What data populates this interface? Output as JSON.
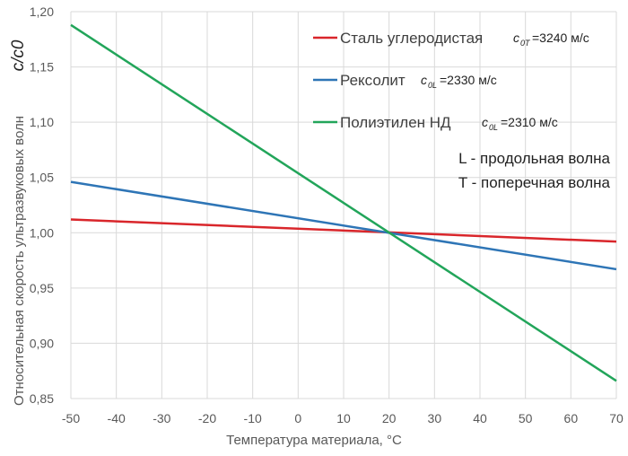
{
  "chart_data": {
    "type": "line",
    "xlabel": "Температура материала, °C",
    "ylabel": "Относительная скорость ультразвуковых волн",
    "ylabel_symbol": "c/c0",
    "xlim": [
      -50,
      70
    ],
    "ylim": [
      0.85,
      1.2
    ],
    "xticks": [
      "-50",
      "-40",
      "-30",
      "-20",
      "-10",
      "0",
      "10",
      "20",
      "30",
      "40",
      "50",
      "60",
      "70"
    ],
    "yticks": [
      "0,85",
      "0,90",
      "0,95",
      "1,00",
      "1,05",
      "1,10",
      "1,15",
      "1,20"
    ],
    "grid": true,
    "legend_position": "top-right",
    "series": [
      {
        "name": "Сталь углеродистая",
        "note": "c0T=3240 м/с",
        "sub": "0T",
        "val": "=3240 м/с",
        "color": "#d9262b",
        "x": [
          -50,
          70
        ],
        "y": [
          1.012,
          0.992
        ]
      },
      {
        "name": "Рексолит",
        "note": "c0L=2330 м/с",
        "sub": "0L",
        "val": "=2330 м/с",
        "color": "#2e75b6",
        "x": [
          -50,
          70
        ],
        "y": [
          1.046,
          0.967
        ]
      },
      {
        "name": "Полиэтилен НД",
        "note": "c0L=2310 м/с",
        "sub": "0L",
        "val": "=2310 м/с",
        "color": "#22a55a",
        "x": [
          -50,
          70
        ],
        "y": [
          1.188,
          0.866
        ]
      }
    ],
    "annotations": [
      "L - продольная волна",
      "T - поперечная волна"
    ]
  }
}
